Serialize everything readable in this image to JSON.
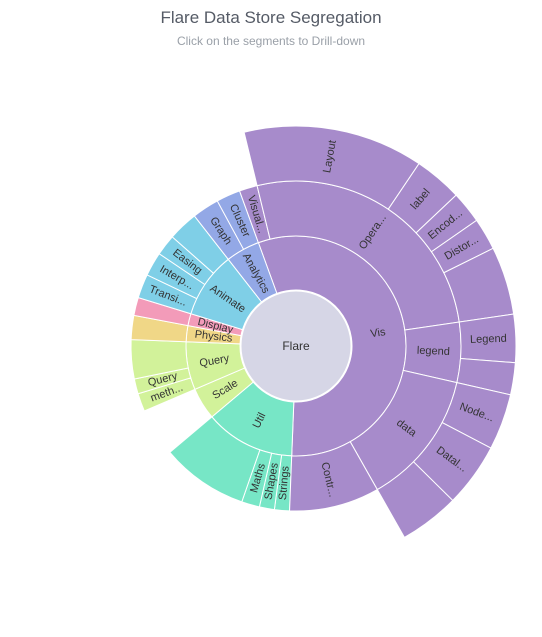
{
  "chart_data": {
    "type": "sunburst",
    "title": "Flare Data Store Segregation",
    "subtitle": "Click on the segments to Drill-down",
    "root": "Flare",
    "colors": {
      "center": "#d6d6e6",
      "Vis": "#a78bcb",
      "Util": "#77e6c6",
      "Scale": "#d2f29a",
      "Query": "#d2f29a",
      "Physics": "#f0d787",
      "Display": "#f39bb9",
      "Animate": "#7fcfe7",
      "Analytics": "#93a8e6"
    },
    "ring1": [
      {
        "name": "Vis",
        "value": 191
      },
      {
        "name": "Util",
        "value": 45
      },
      {
        "name": "Scale",
        "value": 16
      },
      {
        "name": "Query",
        "value": 24
      },
      {
        "name": "Physics",
        "value": 8
      },
      {
        "name": "Display",
        "value": 6
      },
      {
        "name": "Animate",
        "value": 33
      },
      {
        "name": "Analytics",
        "value": 17
      }
    ],
    "ring2": [
      {
        "parent": "Util",
        "name": "Strings",
        "value": 5
      },
      {
        "parent": "Util",
        "name": "Shapes",
        "value": 5
      },
      {
        "parent": "Util",
        "name": "Maths",
        "value": 6
      },
      {
        "parent": "Util",
        "name": "",
        "value": 29
      },
      {
        "parent": "Query",
        "name": "meth...",
        "value": 6
      },
      {
        "parent": "Query",
        "name": "Query",
        "value": 5
      },
      {
        "parent": "Query",
        "name": "",
        "value": 13
      },
      {
        "parent": "Physics",
        "name": "",
        "value": 8
      },
      {
        "parent": "Display",
        "name": "",
        "value": 6
      },
      {
        "parent": "Animate",
        "name": "Transi...",
        "value": 8
      },
      {
        "parent": "Animate",
        "name": "Interp...",
        "value": 8
      },
      {
        "parent": "Animate",
        "name": "Easing",
        "value": 7
      },
      {
        "parent": "Animate",
        "name": "",
        "value": 10
      },
      {
        "parent": "Analytics",
        "name": "Graph",
        "value": 9
      },
      {
        "parent": "Analytics",
        "name": "Cluster",
        "value": 8
      },
      {
        "parent": "Vis",
        "name": "Visual...",
        "value": 6
      },
      {
        "parent": "Vis",
        "name": "Opera...",
        "value": 90
      },
      {
        "parent": "Vis",
        "name": "legend",
        "value": 20
      },
      {
        "parent": "Vis",
        "name": "data",
        "value": 45
      },
      {
        "parent": "Vis",
        "name": "Contr...",
        "value": 30
      }
    ],
    "ring3": [
      {
        "parent": "Opera...",
        "name": "Layout",
        "value": 45
      },
      {
        "parent": "Opera...",
        "name": "label",
        "value": 12
      },
      {
        "parent": "Opera...",
        "name": "Encod...",
        "value": 8
      },
      {
        "parent": "Opera...",
        "name": "Distor...",
        "value": 8
      },
      {
        "parent": "Opera...",
        "name": "",
        "value": 17
      },
      {
        "parent": "legend",
        "name": "Legend",
        "value": 12
      },
      {
        "parent": "legend",
        "name": "",
        "value": 8
      },
      {
        "parent": "data",
        "name": "Node...",
        "value": 14
      },
      {
        "parent": "data",
        "name": "Datal...",
        "value": 16
      },
      {
        "parent": "data",
        "name": "",
        "value": 15
      }
    ]
  }
}
